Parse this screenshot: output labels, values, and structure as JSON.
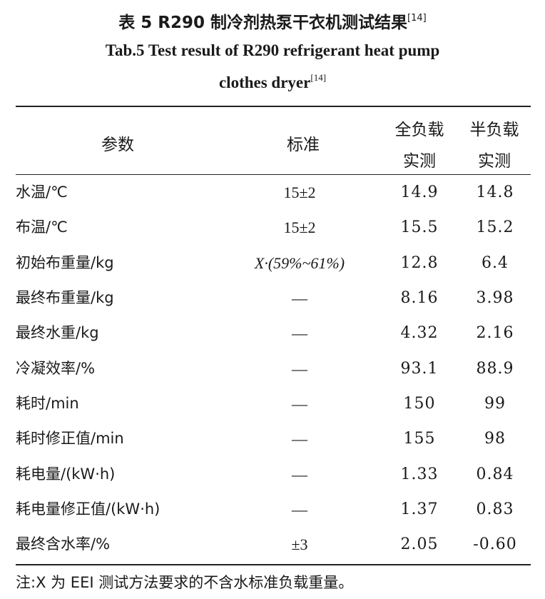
{
  "title": {
    "cn": "表 5 R290 制冷剂热泵干衣机测试结果",
    "en_line1": "Tab.5 Test result of R290 refrigerant heat pump",
    "en_line2": "clothes dryer",
    "ref": "[14]"
  },
  "table": {
    "headers": {
      "param": "参数",
      "std": "标准",
      "full_line1": "全负载",
      "full_line2": "实测",
      "half_line1": "半负载",
      "half_line2": "实测"
    },
    "rows": [
      {
        "param": "水温/℃",
        "std": "15±2",
        "full": "14.9",
        "half": "14.8"
      },
      {
        "param": "布温/℃",
        "std": "15±2",
        "full": "15.5",
        "half": "15.2"
      },
      {
        "param": "初始布重量/kg",
        "std": "X·(59%~61%)",
        "full": "12.8",
        "half": "6.4"
      },
      {
        "param": "最终布重量/kg",
        "std": "—",
        "full": "8.16",
        "half": "3.98"
      },
      {
        "param": "最终水重/kg",
        "std": "—",
        "full": "4.32",
        "half": "2.16"
      },
      {
        "param": "冷凝效率/%",
        "std": "—",
        "full": "93.1",
        "half": "88.9"
      },
      {
        "param": "耗时/min",
        "std": "—",
        "full": "150",
        "half": "99"
      },
      {
        "param": "耗时修正值/min",
        "std": "—",
        "full": "155",
        "half": "98"
      },
      {
        "param": "耗电量/(kW·h)",
        "std": "—",
        "full": "1.33",
        "half": "0.84"
      },
      {
        "param": "耗电量修正值/(kW·h)",
        "std": "—",
        "full": "1.37",
        "half": "0.83"
      },
      {
        "param": "最终含水率/%",
        "std": "±3",
        "full": "2.05",
        "half": "-0.60"
      }
    ]
  },
  "note": "注:X 为 EEI 测试方法要求的不含水标准负载重量。"
}
